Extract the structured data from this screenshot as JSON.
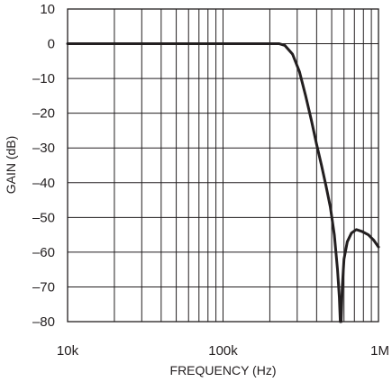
{
  "chart_data": {
    "type": "line",
    "title": "",
    "xlabel": "FREQUENCY (Hz)",
    "ylabel": "GAIN (dB)",
    "x_scale": "log",
    "xlim": [
      10000,
      1000000
    ],
    "ylim": [
      -80,
      10
    ],
    "x_ticks": [
      {
        "value": 10000,
        "label": "10k"
      },
      {
        "value": 100000,
        "label": "100k"
      },
      {
        "value": 1000000,
        "label": "1M"
      }
    ],
    "y_ticks": [
      10,
      0,
      -10,
      -20,
      -30,
      -40,
      -50,
      -60,
      -70,
      -80
    ],
    "y_tick_labels": [
      "10",
      "0",
      "–10",
      "–20",
      "–30",
      "–40",
      "–50",
      "–60",
      "–70",
      "–80"
    ],
    "grid": true,
    "series": [
      {
        "points": [
          [
            10000,
            0
          ],
          [
            50000,
            0
          ],
          [
            200000,
            0
          ],
          [
            230000,
            0
          ],
          [
            250000,
            -0.5
          ],
          [
            280000,
            -3
          ],
          [
            310000,
            -8
          ],
          [
            340000,
            -15
          ],
          [
            370000,
            -22
          ],
          [
            400000,
            -29
          ],
          [
            430000,
            -35
          ],
          [
            460000,
            -41
          ],
          [
            490000,
            -47
          ],
          [
            520000,
            -55
          ],
          [
            545000,
            -65
          ],
          [
            560000,
            -73
          ],
          [
            568000,
            -80
          ],
          [
            575000,
            -80
          ],
          [
            585000,
            -70
          ],
          [
            600000,
            -62
          ],
          [
            630000,
            -57
          ],
          [
            670000,
            -54.5
          ],
          [
            720000,
            -53.5
          ],
          [
            780000,
            -54
          ],
          [
            860000,
            -55
          ],
          [
            930000,
            -56.5
          ],
          [
            1000000,
            -58.5
          ]
        ]
      }
    ]
  }
}
